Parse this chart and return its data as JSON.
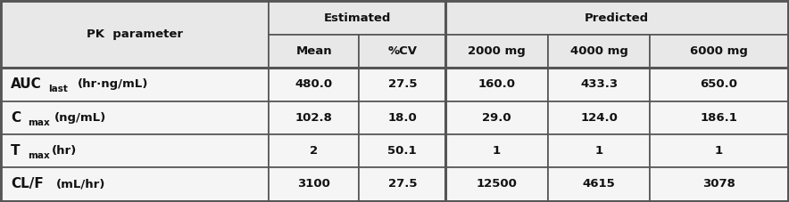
{
  "header_row1": [
    "PK  parameter",
    "Estimated",
    "",
    "Predicted",
    "",
    ""
  ],
  "header_row2": [
    "",
    "",
    "Mean",
    "%CV",
    "2000 mg",
    "4000 mg",
    "6000 mg"
  ],
  "rows": [
    [
      "AUC",
      "last",
      "(hr·ng/mL)",
      "480.0",
      "27.5",
      "160.0",
      "433.3",
      "650.0"
    ],
    [
      "C",
      "max",
      "(ng/mL)",
      "102.8",
      "18.0",
      "29.0",
      "124.0",
      "186.1"
    ],
    [
      "T",
      "max",
      "(hr)",
      "2",
      "50.1",
      "1",
      "1",
      "1"
    ],
    [
      "CL/F",
      "",
      "(mL/hr)",
      "3100",
      "27.5",
      "12500",
      "4615",
      "3078"
    ]
  ],
  "bg_header": "#e8e8e8",
  "bg_body": "#f5f5f5",
  "border_color": "#555555",
  "text_color": "#111111",
  "fig_width": 8.84,
  "fig_height": 2.27
}
